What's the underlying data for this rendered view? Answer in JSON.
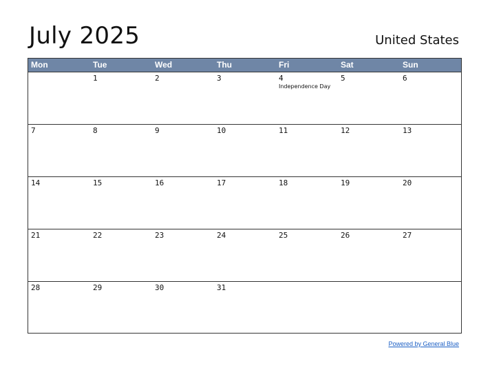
{
  "title": "July 2025",
  "country": "United States",
  "weekdays": [
    "Mon",
    "Tue",
    "Wed",
    "Thu",
    "Fri",
    "Sat",
    "Sun"
  ],
  "weeks": [
    [
      "",
      "1",
      "2",
      "3",
      "4",
      "5",
      "6"
    ],
    [
      "7",
      "8",
      "9",
      "10",
      "11",
      "12",
      "13"
    ],
    [
      "14",
      "15",
      "16",
      "17",
      "18",
      "19",
      "20"
    ],
    [
      "21",
      "22",
      "23",
      "24",
      "25",
      "26",
      "27"
    ],
    [
      "28",
      "29",
      "30",
      "31",
      "",
      "",
      ""
    ]
  ],
  "holidays": [
    {
      "day": "4",
      "name": "Independence Day"
    }
  ],
  "footer": "Powered by General Blue",
  "colors": {
    "header_bg": "#6f86a6",
    "link": "#1b5fc4"
  }
}
